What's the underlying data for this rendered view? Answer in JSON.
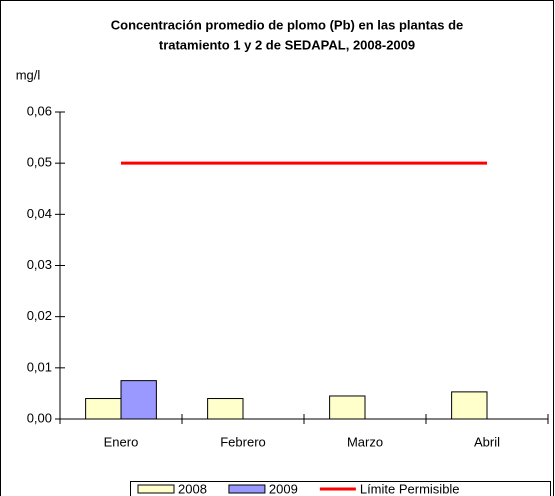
{
  "chart_data": {
    "type": "bar",
    "title": [
      "Concentración promedio de plomo (Pb) en las plantas de",
      "tratamiento  1 y 2 de SEDAPAL, 2008-2009"
    ],
    "y_label": "mg/l",
    "categories": [
      "Enero",
      "Febrero",
      "Marzo",
      "Abril"
    ],
    "series": [
      {
        "name": "2008",
        "color": "#ffffcc",
        "type": "bar",
        "values": [
          0.004,
          0.004,
          0.0045,
          0.0053
        ]
      },
      {
        "name": "2009",
        "color": "#9999ff",
        "type": "bar",
        "values": [
          0.0075,
          null,
          null,
          null
        ]
      },
      {
        "name": "Límite Permisible",
        "color": "#ff0000",
        "type": "line",
        "values": [
          0.05,
          0.05,
          0.05,
          0.05
        ]
      }
    ],
    "ylim": [
      0,
      0.06
    ],
    "yticks": [
      {
        "value": 0,
        "label": "0,00"
      },
      {
        "value": 0.01,
        "label": "0,01"
      },
      {
        "value": 0.02,
        "label": "0,02"
      },
      {
        "value": 0.03,
        "label": "0,03"
      },
      {
        "value": 0.04,
        "label": "0,04"
      },
      {
        "value": 0.05,
        "label": "0,05"
      },
      {
        "value": 0.06,
        "label": "0,06"
      }
    ],
    "grid": false,
    "legend": "bottom"
  }
}
